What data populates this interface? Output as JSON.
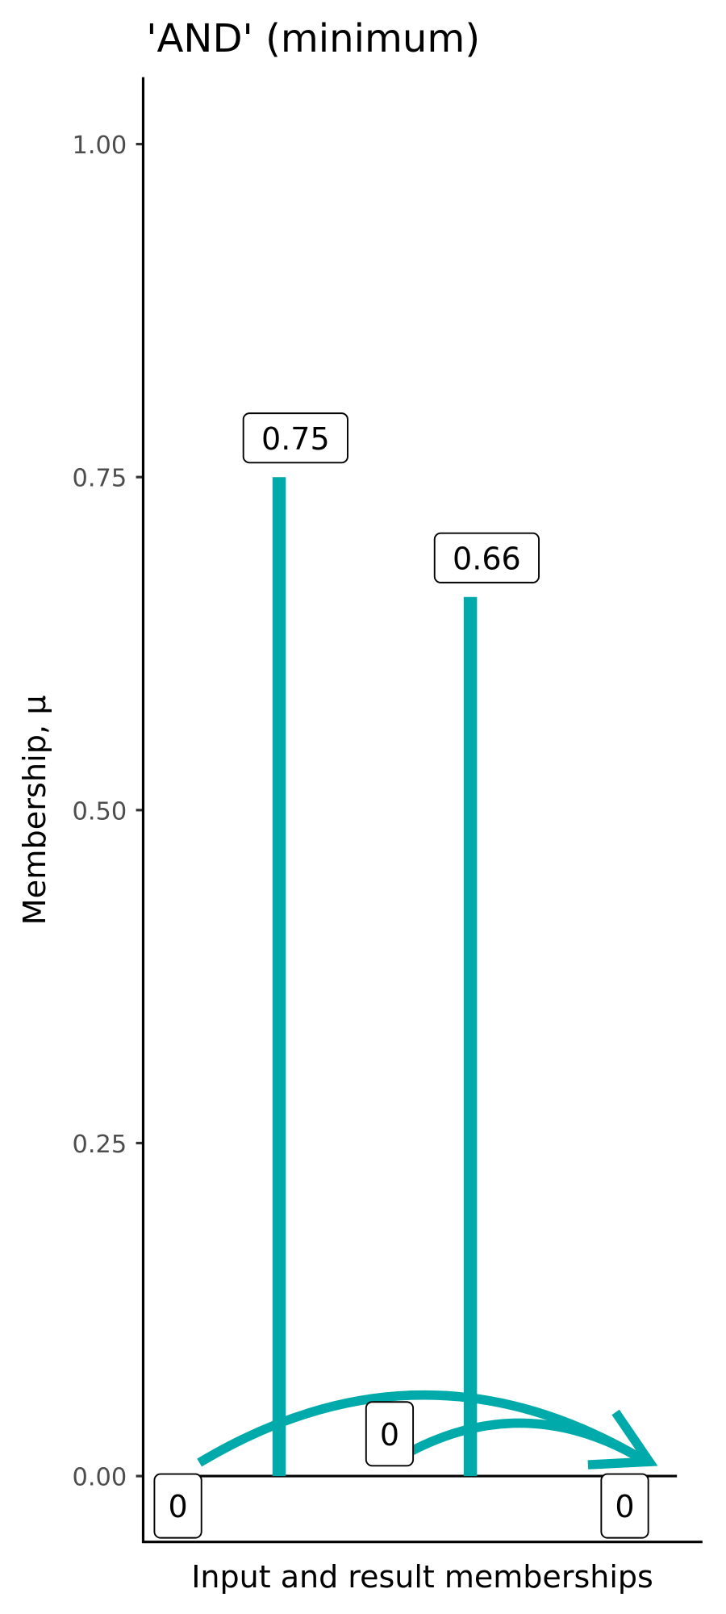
{
  "chart_data": {
    "type": "bar",
    "title": "'AND' (minimum)",
    "xlabel": "Input and result memberships",
    "ylabel": "Membership, μ",
    "ylim": [
      -0.05,
      1.05
    ],
    "yticks": [
      "0.00",
      "0.25",
      "0.50",
      "0.75",
      "1.00"
    ],
    "ytick_values": [
      0,
      0.25,
      0.5,
      0.75,
      1.0
    ],
    "grid": false,
    "color": "#00AAAA",
    "bars": [
      {
        "value": 0.75,
        "label": "0.75"
      },
      {
        "value": 0.66,
        "label": "0.66"
      }
    ],
    "zero_labels": [
      "0",
      "0",
      "0"
    ],
    "arrows": 2
  }
}
